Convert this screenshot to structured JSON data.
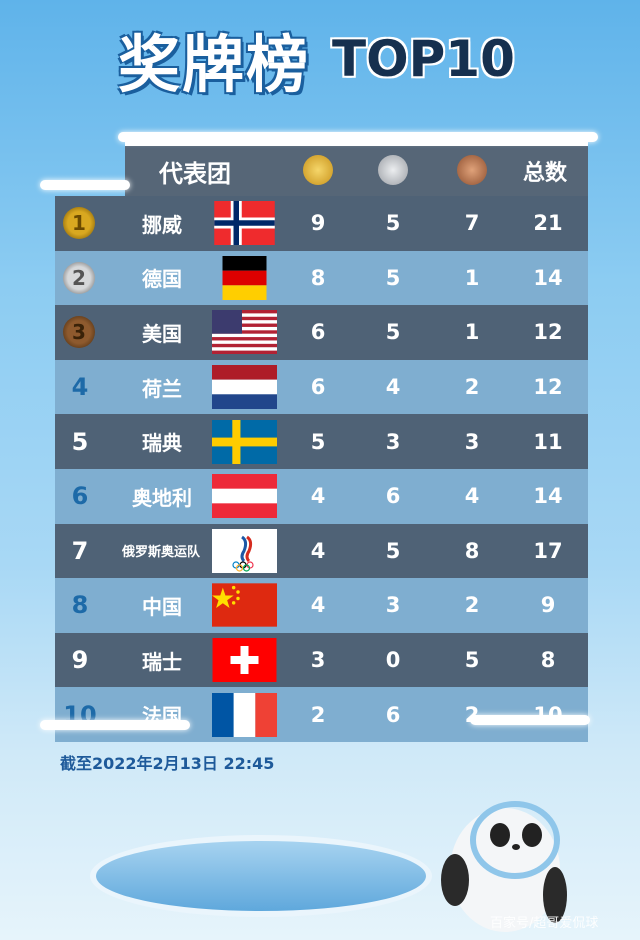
{
  "title": {
    "main": "奖牌榜",
    "sub": "TOP10"
  },
  "header": {
    "team": "代表团",
    "gold_icon": "gold-medal-icon",
    "silver_icon": "silver-medal-icon",
    "bronze_icon": "bronze-medal-icon",
    "total": "总数"
  },
  "rows": [
    {
      "rank": "1",
      "name": "挪威",
      "flag": "norway",
      "gold": "9",
      "silver": "5",
      "bronze": "7",
      "total": "21"
    },
    {
      "rank": "2",
      "name": "德国",
      "flag": "germany",
      "gold": "8",
      "silver": "5",
      "bronze": "1",
      "total": "14"
    },
    {
      "rank": "3",
      "name": "美国",
      "flag": "usa",
      "gold": "6",
      "silver": "5",
      "bronze": "1",
      "total": "12"
    },
    {
      "rank": "4",
      "name": "荷兰",
      "flag": "netherlands",
      "gold": "6",
      "silver": "4",
      "bronze": "2",
      "total": "12"
    },
    {
      "rank": "5",
      "name": "瑞典",
      "flag": "sweden",
      "gold": "5",
      "silver": "3",
      "bronze": "3",
      "total": "11"
    },
    {
      "rank": "6",
      "name": "奥地利",
      "flag": "austria",
      "gold": "4",
      "silver": "6",
      "bronze": "4",
      "total": "14"
    },
    {
      "rank": "7",
      "name": "俄罗斯奥运队",
      "flag": "roc",
      "gold": "4",
      "silver": "5",
      "bronze": "8",
      "total": "17"
    },
    {
      "rank": "8",
      "name": "中国",
      "flag": "china",
      "gold": "4",
      "silver": "3",
      "bronze": "2",
      "total": "9"
    },
    {
      "rank": "9",
      "name": "瑞士",
      "flag": "switzerland",
      "gold": "3",
      "silver": "0",
      "bronze": "5",
      "total": "8"
    },
    {
      "rank": "10",
      "name": "法国",
      "flag": "france",
      "gold": "2",
      "silver": "6",
      "bronze": "2",
      "total": "10"
    }
  ],
  "date": "截至2022年2月13日 22:45",
  "watermark": "百家号/超哥爱侃球",
  "colors": {
    "dark_row": "#4f6276",
    "light_row": "#7faed0",
    "gold": "#d9a820",
    "silver": "#b8bcc2",
    "bronze": "#a0613a",
    "rank_blue": "#1d6aa8"
  }
}
